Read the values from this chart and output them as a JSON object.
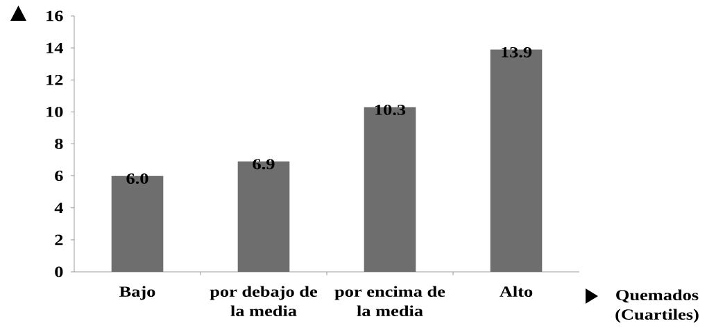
{
  "chart_data": {
    "type": "bar",
    "categories": [
      "Bajo",
      "por debajo de la media",
      "por encima de la media",
      "Alto"
    ],
    "values": [
      6.0,
      6.9,
      10.3,
      13.9
    ],
    "value_labels": [
      "6.0",
      "6.9",
      "10.3",
      "13.9"
    ],
    "color": "#6e6e6e",
    "xlabel": "Quemados (Cuartiles)",
    "ylim": [
      0,
      16
    ],
    "yticks": [
      0,
      2,
      4,
      6,
      8,
      10,
      12,
      14,
      16
    ]
  }
}
